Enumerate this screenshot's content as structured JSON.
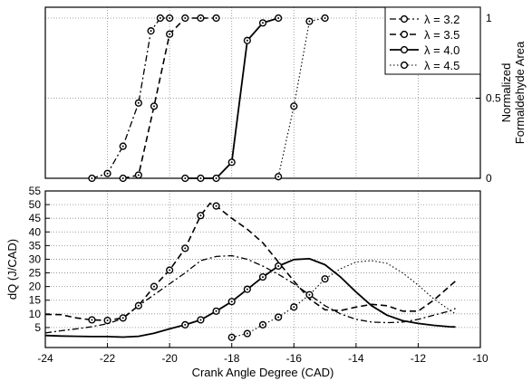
{
  "chart_data": [
    {
      "panel": "top",
      "type": "line",
      "xlabel": "",
      "ylabel": "Normalized\nFormaldehyde Area",
      "xlim": [
        -24,
        -10
      ],
      "ylim": [
        0,
        1
      ],
      "y_axis_side": "right",
      "yticks": [
        0,
        0.5,
        1
      ],
      "ytick_labels": [
        "0",
        "0.5",
        "1"
      ],
      "grid": true,
      "legend_placement": "top-right",
      "series": [
        {
          "name": "λ = 3.2",
          "style": "dashdot",
          "marker": "circle",
          "x": [
            -22.5,
            -22.0,
            -21.5,
            -21.0,
            -20.6,
            -20.3,
            -20.0
          ],
          "y": [
            0,
            0.03,
            0.2,
            0.47,
            0.92,
            1,
            1
          ]
        },
        {
          "name": "λ = 3.5",
          "style": "dashed",
          "marker": "circle",
          "x": [
            -21.5,
            -21.0,
            -20.5,
            -20.0,
            -19.5,
            -19.0,
            -18.5
          ],
          "y": [
            0,
            0.02,
            0.45,
            0.9,
            1,
            1,
            1
          ]
        },
        {
          "name": "λ = 4.0",
          "style": "solid",
          "marker": "circle",
          "x": [
            -19.5,
            -19.0,
            -18.5,
            -18.0,
            -17.5,
            -17.0,
            -16.5
          ],
          "y": [
            0,
            0,
            0,
            0.1,
            0.86,
            0.97,
            1
          ]
        },
        {
          "name": "λ = 4.5",
          "style": "dotted",
          "marker": "circle",
          "x": [
            -16.5,
            -16.0,
            -15.5,
            -15.0
          ],
          "y": [
            0.01,
            0.45,
            0.98,
            1
          ]
        }
      ]
    },
    {
      "panel": "bottom",
      "type": "line",
      "xlabel": "Crank Angle Degree (CAD)",
      "ylabel": "dQ (J/CAD)",
      "xlim": [
        -24,
        -10
      ],
      "ylim": [
        0,
        55
      ],
      "xticks": [
        -24,
        -22,
        -20,
        -18,
        -16,
        -14,
        -12,
        -10
      ],
      "xtick_labels": [
        "-24",
        "-22",
        "-20",
        "-18",
        "-16",
        "-14",
        "-12",
        "-10"
      ],
      "yticks": [
        5,
        10,
        15,
        20,
        25,
        30,
        35,
        40,
        45,
        50,
        55
      ],
      "ytick_labels": [
        "5",
        "10",
        "15",
        "20",
        "25",
        "30",
        "35",
        "40",
        "45",
        "50",
        "55"
      ],
      "grid": true,
      "series": [
        {
          "name": "λ = 3.2",
          "style": "dashdot",
          "x": [
            -24,
            -23.5,
            -23,
            -22.5,
            -22,
            -21.5,
            -21,
            -20.5,
            -20,
            -19.5,
            -19,
            -18.5,
            -18,
            -17.5,
            -17,
            -16.5,
            -16,
            -15.5,
            -15,
            -14.5,
            -14,
            -13.5,
            -13,
            -12.5,
            -12,
            -11.5,
            -11,
            -10.8
          ],
          "y": [
            3,
            3.8,
            4.5,
            5.3,
            6.4,
            8.3,
            13,
            17,
            21,
            25,
            29.5,
            31,
            31.3,
            30,
            27.5,
            24.5,
            21,
            17,
            13,
            10,
            8,
            7,
            6.8,
            7,
            8,
            9.5,
            11,
            12
          ]
        },
        {
          "name": "λ = 3.5",
          "style": "dashed",
          "markers_x": [
            -22.5,
            -22,
            -21.5,
            -21,
            -20.5,
            -20,
            -19.5,
            -19,
            -18.5
          ],
          "x": [
            -24,
            -23.5,
            -23,
            -22.5,
            -22,
            -21.5,
            -21,
            -20.5,
            -20,
            -19.5,
            -19,
            -18.7,
            -18.5,
            -18,
            -17.5,
            -17,
            -16.5,
            -16,
            -15.5,
            -15,
            -14.5,
            -14,
            -13.5,
            -13,
            -12.5,
            -12,
            -11.5,
            -11,
            -10.8
          ],
          "y": [
            9.8,
            9.7,
            8.5,
            7.8,
            7.6,
            8.5,
            13,
            20,
            26,
            34,
            46,
            50.5,
            49.5,
            45,
            41,
            36,
            29,
            22,
            15.5,
            11.5,
            11.2,
            12.5,
            13.5,
            13,
            11,
            11,
            15,
            20,
            22
          ]
        },
        {
          "name": "λ = 4.0",
          "style": "solid",
          "markers_x": [
            -19.5,
            -19,
            -18.5,
            -18,
            -17.5,
            -17,
            -16.5
          ],
          "x": [
            -24,
            -23.5,
            -23,
            -22.5,
            -22,
            -21.5,
            -21,
            -20.5,
            -20,
            -19.5,
            -19,
            -18.5,
            -18,
            -17.5,
            -17,
            -16.5,
            -16,
            -15.5,
            -15,
            -14.5,
            -14,
            -13.5,
            -13,
            -12.5,
            -12,
            -11.5,
            -11,
            -10.8
          ],
          "y": [
            2.1,
            1.9,
            1.8,
            1.7,
            1.7,
            1.5,
            1.8,
            2.9,
            4.5,
            6,
            7.8,
            11,
            14.5,
            19,
            23.5,
            27.5,
            29.9,
            30.2,
            28,
            23.5,
            18,
            13,
            9.5,
            7.5,
            6.5,
            5.8,
            5.3,
            5.2
          ]
        },
        {
          "name": "λ = 4.5",
          "style": "dotted",
          "markers_x": [
            -18,
            -17.5,
            -17,
            -16.5,
            -16,
            -15.5,
            -15
          ],
          "x": [
            -18,
            -17.5,
            -17,
            -16.5,
            -16,
            -15.5,
            -15,
            -14.5,
            -14,
            -13.5,
            -13,
            -12.5,
            -12,
            -11.5,
            -11,
            -10.8
          ],
          "y": [
            1.4,
            2.8,
            6,
            8.8,
            12.5,
            17,
            22.8,
            26.5,
            29,
            29.5,
            28.5,
            25,
            20.5,
            15.5,
            11.5,
            10
          ]
        }
      ]
    }
  ]
}
